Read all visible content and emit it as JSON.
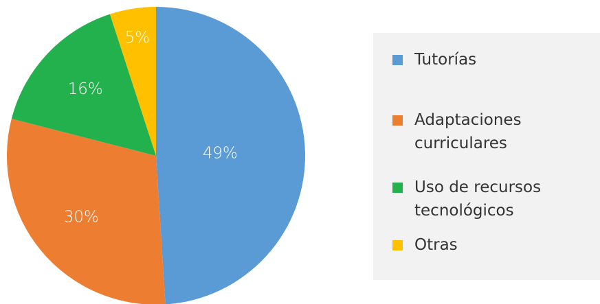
{
  "chart_data": {
    "type": "pie",
    "categories": [
      "Tutorías",
      "Adaptaciones curriculares",
      "Uso de recursos tecnológicos",
      "Otras"
    ],
    "values": [
      49,
      30,
      16,
      5
    ],
    "value_labels": [
      "49%",
      "30%",
      "16%",
      "5%"
    ],
    "colors": [
      "#5b9bd5",
      "#ed7d31",
      "#22b14c",
      "#ffc000"
    ],
    "legend": "right"
  }
}
